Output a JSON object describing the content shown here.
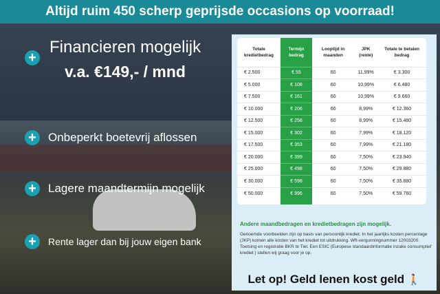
{
  "banner": "Altijd ruim 450 scherp geprijsde occasions op voorraad!",
  "left": {
    "title": "Financieren mogelijk",
    "subtitle": "v.a. €149,- / mnd",
    "items": [
      "Onbeperkt boetevrij aflossen",
      "Lagere maandtermijn mogelijk",
      "Rente lager dan bij jouw eigen bank"
    ]
  },
  "table": {
    "headers": [
      "Totale kredietbedrag",
      "Termijn bedrag",
      "Looptijd in maanden",
      "JPK (rente)",
      "Totale te betalen bedrag"
    ],
    "rows": [
      [
        "€ 2.500",
        "€ 55",
        "60",
        "11,99%",
        "€ 3.300"
      ],
      [
        "€ 5.000",
        "€ 108",
        "60",
        "10,99%",
        "€ 6.480"
      ],
      [
        "€ 7.500",
        "€ 161",
        "60",
        "10,99%",
        "€ 9.660"
      ],
      [
        "€ 10.000",
        "€ 206",
        "60",
        "8,99%",
        "€ 12.360"
      ],
      [
        "€ 12.500",
        "€ 258",
        "60",
        "8,99%",
        "€ 15.480"
      ],
      [
        "€ 15.000",
        "€ 302",
        "60",
        "7,99%",
        "€ 18.120"
      ],
      [
        "€ 17.500",
        "€ 353",
        "60",
        "7,99%",
        "€ 21.180"
      ],
      [
        "€ 20.000",
        "€ 399",
        "60",
        "7,50%",
        "€ 23.940"
      ],
      [
        "€ 25.000",
        "€ 498",
        "60",
        "7,50%",
        "€ 29.880"
      ],
      [
        "€ 30.000",
        "€ 598",
        "60",
        "7,50%",
        "€ 35.880"
      ],
      [
        "€ 50.000",
        "€ 996",
        "60",
        "7,50%",
        "€ 59.760"
      ]
    ]
  },
  "note_heading": "Andere maandbedragen en kredietbedragen zijn mogelijk.",
  "note_text": "Genoemde voorbeelden zijn op basis van persoonlijk krediet. In het jaarlijks kosten percentage (JKP) komen alle kosten van het krediet tot uitdrukking. Wft-vergunningnummer 12003200. Toetsing en registratie BKR te Tiel. Een ESIC (Europese standaardinformatie inzake consumptief krediet ) stellen wij graag voor je op.",
  "warning": "Let op! Geld lenen kost geld",
  "colors": {
    "banner": "#1a8a99",
    "green": "#27a046",
    "plus": "#1aa0b0"
  }
}
